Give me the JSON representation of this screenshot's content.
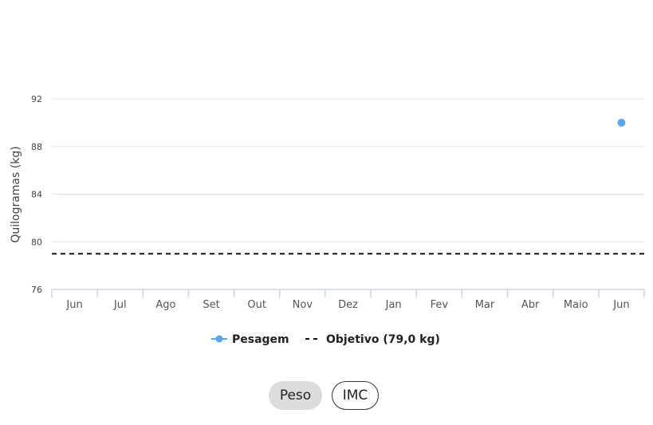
{
  "chart_data": {
    "type": "line",
    "title": "",
    "xlabel": "",
    "ylabel": "Quilogramas (kg)",
    "categories": [
      "Jun",
      "Jul",
      "Ago",
      "Set",
      "Out",
      "Nov",
      "Dez",
      "Jan",
      "Fev",
      "Mar",
      "Abr",
      "Maio",
      "Jun"
    ],
    "ylim": [
      76,
      92
    ],
    "yticks": [
      "92",
      "88",
      "84",
      "80",
      "76"
    ],
    "grid": true,
    "legend_position": "bottom",
    "series": [
      {
        "name": "Pesagem",
        "type": "scatter",
        "color": "#5aa6ee",
        "points": [
          {
            "category_index": 12,
            "y": 90
          }
        ]
      },
      {
        "name": "Objetivo (79,0 kg)",
        "type": "dashed-line",
        "color": "#111111",
        "y": 79
      }
    ]
  },
  "toggles": {
    "peso": "Peso",
    "imc": "IMC",
    "active": "Peso"
  }
}
